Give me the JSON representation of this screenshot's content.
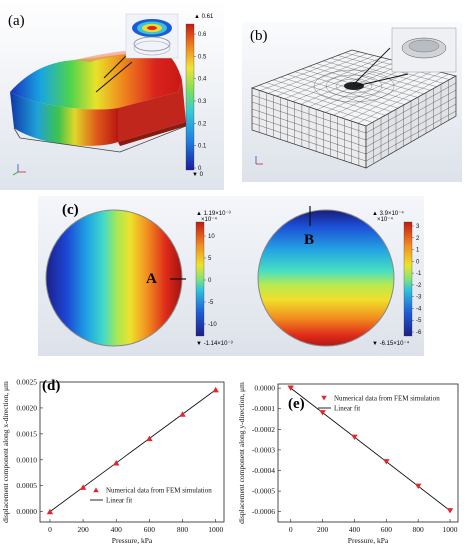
{
  "panel_a": {
    "label": "(a)",
    "colorbar": {
      "max_label": "▲ 0.61",
      "min_label": "▼ 0",
      "ticks": [
        "0.6",
        "0.5",
        "0.4",
        "0.3",
        "0.2",
        "0.1",
        "0"
      ]
    },
    "axis_glyph": "Y  z\n   x"
  },
  "panel_b": {
    "label": "(b)"
  },
  "panel_c": {
    "label": "(c)",
    "left": {
      "marker": "A",
      "top_label": "▲ 1.19×10⁻³",
      "top_sub": "×10⁻⁴",
      "bottom_label": "▼ -1.14×10⁻³",
      "ticks": [
        "10",
        "5",
        "0",
        "-5",
        "-10"
      ]
    },
    "right": {
      "marker": "B",
      "top_label": "▲ 3.9×10⁻⁴",
      "top_sub": "×10⁻⁴",
      "bottom_label": "▼ -6.15×10⁻⁴",
      "ticks": [
        "3",
        "2",
        "1",
        "0",
        "-1",
        "-2",
        "-3",
        "-4",
        "-5",
        "-6"
      ]
    }
  },
  "chart_data": [
    {
      "id": "d",
      "type": "scatter",
      "panel_label": "(d)",
      "xlabel": "Pressure, kPa",
      "ylabel": "displacement component along x-direction, μm",
      "xlim": [
        -60,
        1050
      ],
      "ylim": [
        -0.0002,
        0.0025
      ],
      "xticks": [
        "0",
        "200",
        "400",
        "600",
        "800",
        "1000"
      ],
      "yticks": [
        "0.0000",
        "0.0005",
        "0.0010",
        "0.0015",
        "0.0020",
        "0.0025"
      ],
      "x": [
        0,
        200,
        400,
        600,
        800,
        1000
      ],
      "y": [
        0.0,
        0.00047,
        0.00094,
        0.00141,
        0.00188,
        0.00235
      ],
      "legend": [
        "Numerical data from FEM simulation",
        "Linear fit"
      ],
      "marker": "triangle-up",
      "marker_color": "#e0282e"
    },
    {
      "id": "e",
      "type": "scatter",
      "panel_label": "(e)",
      "xlabel": "Pressure, kPa",
      "ylabel": "displacement component along y-direction, μm",
      "xlim": [
        -80,
        1050
      ],
      "ylim": [
        -0.00065,
        2e-05
      ],
      "xticks": [
        "0",
        "200",
        "400",
        "600",
        "800",
        "1000"
      ],
      "yticks": [
        "0.0000",
        "-0.0001",
        "-0.0002",
        "-0.0003",
        "-0.0004",
        "-0.0005",
        "-0.0006"
      ],
      "x": [
        0,
        200,
        400,
        600,
        800,
        1000
      ],
      "y": [
        0.0,
        -0.000119,
        -0.000238,
        -0.000357,
        -0.000476,
        -0.000595
      ],
      "legend": [
        "Numerical data from FEM simulation",
        "Linear fit"
      ],
      "marker": "triangle-down",
      "marker_color": "#e0282e"
    }
  ]
}
